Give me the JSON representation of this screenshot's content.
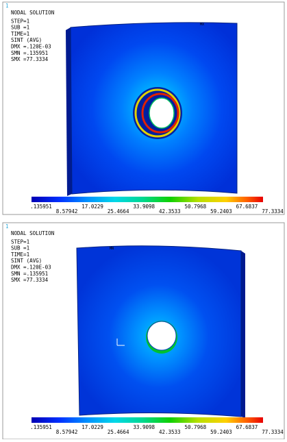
{
  "panels": [
    {
      "index_label": "1",
      "header": [
        "NODAL SOLUTION",
        "STEP=1",
        "SUB =1",
        "TIME=1",
        "SINT     (AVG)",
        "DMX =.120E-03",
        "SMN =.135951",
        "SMX =77.3334"
      ],
      "marker": "MX",
      "legend": [
        ".135951",
        "8.57942",
        "17.0229",
        "25.4664",
        "33.9098",
        "42.3533",
        "50.7968",
        "59.2403",
        "67.6837",
        "77.3334"
      ]
    },
    {
      "index_label": "1",
      "header": [
        "NODAL SOLUTION",
        "STEP=1",
        "SUB =1",
        "TIME=1",
        "SINT     (AVG)",
        "DMX =.120E-03",
        "SMN =.135951",
        "SMX =77.3334"
      ],
      "marker": "MN",
      "legend": [
        ".135951",
        "8.57942",
        "17.0229",
        "25.4664",
        "33.9098",
        "42.3533",
        "50.7968",
        "59.2403",
        "67.6837",
        "77.3334"
      ]
    }
  ]
}
